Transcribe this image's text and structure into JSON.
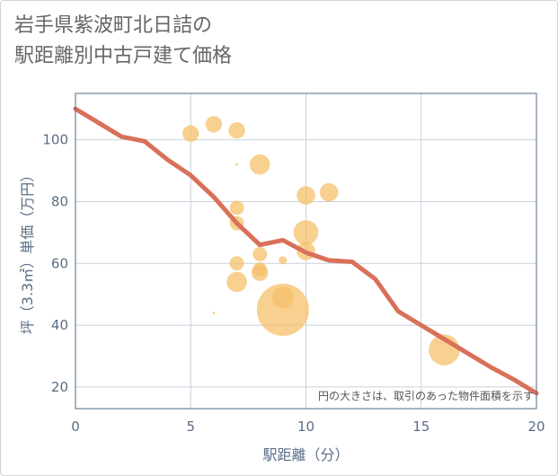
{
  "title_lines": [
    "岩手県紫波町北日詰の",
    "駅距離別中古戸建て価格"
  ],
  "chart_data": {
    "type": "scatter",
    "xlabel": "駅距離（分）",
    "ylabel": "坪（3.3㎡）単価（万円）",
    "xlim": [
      0,
      20
    ],
    "ylim": [
      13,
      115
    ],
    "x_ticks": [
      0,
      5,
      10,
      15,
      20
    ],
    "y_ticks": [
      20,
      40,
      60,
      80,
      100
    ],
    "grid": true,
    "annotation": "円の大きさは、取引のあった物件面積を示す",
    "colors": {
      "bubble": "#f5c06a",
      "trend": "#d9705a",
      "grid": "#c8d2dc",
      "axis": "#4f6b85"
    },
    "bubbles": [
      {
        "x": 5,
        "y": 102,
        "size": 2
      },
      {
        "x": 6,
        "y": 105,
        "size": 2
      },
      {
        "x": 7,
        "y": 103,
        "size": 2
      },
      {
        "x": 7,
        "y": 78,
        "size": 1.5
      },
      {
        "x": 7,
        "y": 73,
        "size": 1.5
      },
      {
        "x": 7,
        "y": 60,
        "size": 1.5
      },
      {
        "x": 7,
        "y": 54,
        "size": 3
      },
      {
        "x": 7,
        "y": 92,
        "size": 0.05
      },
      {
        "x": 6,
        "y": 44,
        "size": 0.05
      },
      {
        "x": 8,
        "y": 92,
        "size": 3
      },
      {
        "x": 8,
        "y": 63,
        "size": 1.5
      },
      {
        "x": 8,
        "y": 58,
        "size": 1.5
      },
      {
        "x": 8,
        "y": 57,
        "size": 2
      },
      {
        "x": 9,
        "y": 61,
        "size": 0.5
      },
      {
        "x": 9,
        "y": 49,
        "size": 3.5
      },
      {
        "x": 9,
        "y": 45,
        "size": 20
      },
      {
        "x": 10,
        "y": 82,
        "size": 2.5
      },
      {
        "x": 10,
        "y": 70,
        "size": 4.5
      },
      {
        "x": 10,
        "y": 64,
        "size": 2.5
      },
      {
        "x": 11,
        "y": 83,
        "size": 2.5
      },
      {
        "x": 16,
        "y": 32,
        "size": 7
      }
    ],
    "trend": {
      "x": [
        0,
        1,
        2,
        3,
        4,
        5,
        6,
        7,
        8,
        9,
        10,
        11,
        12,
        13,
        14,
        15,
        16,
        17,
        18,
        19,
        20
      ],
      "y": [
        110,
        105.5,
        101,
        99.5,
        93.5,
        88.5,
        81.5,
        73,
        66,
        67.5,
        63.5,
        61,
        60.5,
        55,
        44.5,
        40,
        35.5,
        31,
        26.5,
        22.5,
        18
      ]
    }
  }
}
